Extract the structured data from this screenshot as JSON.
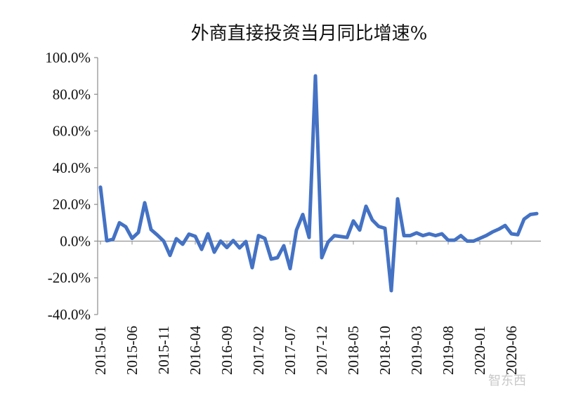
{
  "chart_data": {
    "type": "line",
    "title": "外商直接投资当月同比增速%",
    "xlabel": "",
    "ylabel": "",
    "ylim": [
      -40,
      100
    ],
    "y_ticks": [
      "100.0%",
      "80.0%",
      "60.0%",
      "40.0%",
      "20.0%",
      "0.0%",
      "-20.0%",
      "-40.0%"
    ],
    "y_tick_values": [
      100,
      80,
      60,
      40,
      20,
      0,
      -20,
      -40
    ],
    "x_tick_labels": [
      "2015-01",
      "2015-06",
      "2015-11",
      "2016-04",
      "2016-09",
      "2017-02",
      "2017-07",
      "2017-12",
      "2018-05",
      "2018-10",
      "2019-03",
      "2019-08",
      "2020-01",
      "2020-06"
    ],
    "grid": false,
    "color": "#4472C4",
    "series": [
      {
        "x": [
          "2015-01",
          "2015-02",
          "2015-03",
          "2015-04",
          "2015-05",
          "2015-06",
          "2015-07",
          "2015-08",
          "2015-09",
          "2015-10",
          "2015-11",
          "2015-12",
          "2016-01",
          "2016-02",
          "2016-03",
          "2016-04",
          "2016-05",
          "2016-06",
          "2016-07",
          "2016-08",
          "2016-09",
          "2016-10",
          "2016-11",
          "2016-12",
          "2017-01",
          "2017-02",
          "2017-03",
          "2017-04",
          "2017-05",
          "2017-06",
          "2017-07",
          "2017-08",
          "2017-09",
          "2017-10",
          "2017-11",
          "2017-12",
          "2018-01",
          "2018-02",
          "2018-03",
          "2018-04",
          "2018-05",
          "2018-06",
          "2018-07",
          "2018-08",
          "2018-09",
          "2018-10",
          "2018-11",
          "2018-12",
          "2019-01",
          "2019-02",
          "2019-03",
          "2019-04",
          "2019-05",
          "2019-06",
          "2019-07",
          "2019-08",
          "2019-09",
          "2019-10",
          "2019-11",
          "2019-12",
          "2020-01",
          "2020-02",
          "2020-03",
          "2020-04",
          "2020-05",
          "2020-06",
          "2020-07",
          "2020-08",
          "2020-09",
          "2020-10"
        ],
        "values": [
          29.4,
          0.2,
          1.0,
          10.0,
          7.8,
          1.5,
          4.7,
          20.9,
          6.3,
          3.3,
          0.0,
          -7.8,
          1.3,
          -1.7,
          3.8,
          2.6,
          -4.5,
          4.0,
          -6.0,
          0.0,
          -3.5,
          0.3,
          -3.7,
          -0.2,
          -14.5,
          3.0,
          1.5,
          -9.8,
          -9.0,
          -2.5,
          -15.0,
          6.0,
          14.5,
          2.0,
          90.0,
          -9.0,
          -0.5,
          3.0,
          2.5,
          2.0,
          11.0,
          6.0,
          19.0,
          11.5,
          8.0,
          7.0,
          -27.0,
          23.0,
          3.0,
          3.0,
          4.5,
          3.0,
          4.0,
          3.0,
          4.0,
          0.5,
          0.5,
          3.0,
          0.0,
          0.0,
          1.5,
          3.0,
          5.0,
          6.5,
          8.5,
          4.0,
          3.5,
          12.0,
          14.5,
          15.0
        ]
      }
    ]
  },
  "watermark": "智东西"
}
